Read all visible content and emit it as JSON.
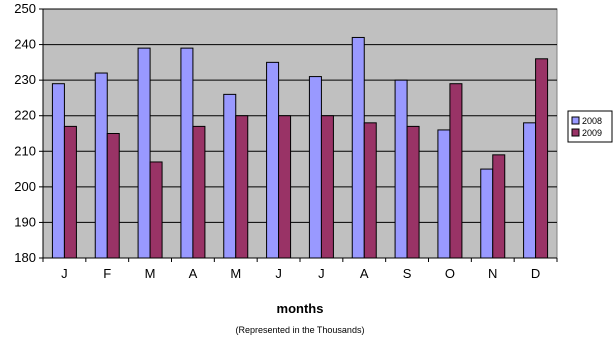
{
  "chart_data": {
    "type": "bar",
    "categories": [
      "J",
      "F",
      "M",
      "A",
      "M",
      "J",
      "J",
      "A",
      "S",
      "O",
      "N",
      "D"
    ],
    "series": [
      {
        "name": "2008",
        "values": [
          229,
          232,
          239,
          239,
          226,
          235,
          231,
          242,
          230,
          216,
          205,
          218
        ],
        "color": "#9999ff"
      },
      {
        "name": "2009",
        "values": [
          217,
          215,
          207,
          217,
          220,
          220,
          220,
          218,
          217,
          229,
          209,
          236
        ],
        "color": "#993366"
      }
    ],
    "xlabel": "months",
    "subtitle": "(Represented in the Thousands)",
    "ylim": [
      180,
      250
    ],
    "yticks": [
      180,
      190,
      200,
      210,
      220,
      230,
      240,
      250
    ],
    "grid": true,
    "plot_background": "#c0c0c0",
    "legend_placement": "right"
  }
}
